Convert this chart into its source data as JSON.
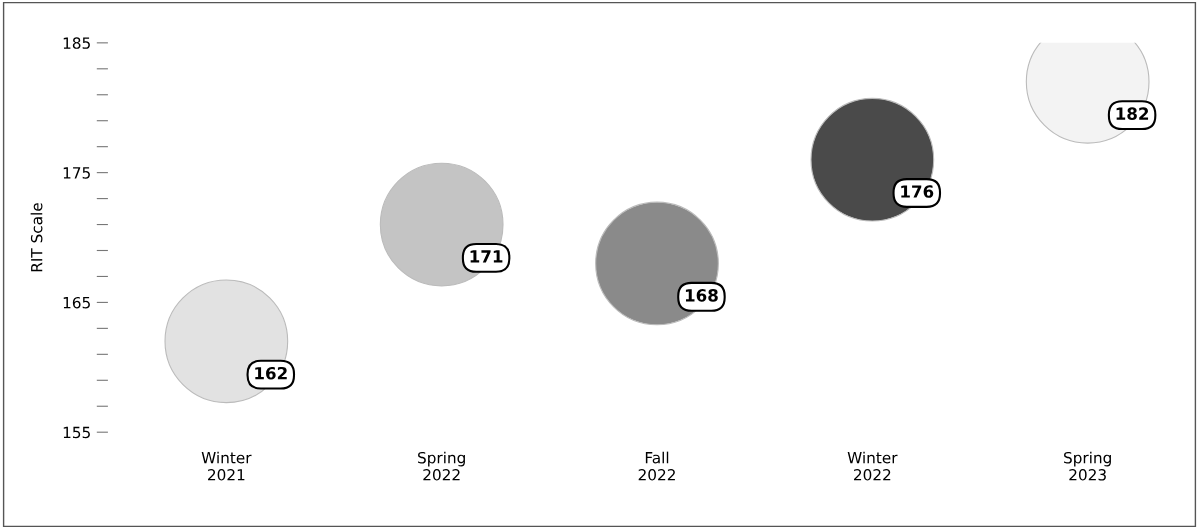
{
  "chart_data": {
    "type": "scatter",
    "ylabel": "RIT Scale",
    "marker": "circle",
    "categories": [
      "Winter\n2021",
      "Spring\n2022",
      "Fall\n2022",
      "Winter\n2022",
      "Spring\n2023"
    ],
    "series": [
      {
        "colors": [
          "#e2e2e2",
          "#c4c4c4",
          "#8a8a8a",
          "#4a4a4a",
          "#f3f3f3"
        ],
        "values": [
          162,
          171,
          168,
          176,
          182
        ]
      }
    ],
    "data_labels": true,
    "ylim": [
      155,
      185
    ],
    "yticks": [
      155,
      {
        "value": 157,
        "label": null
      },
      {
        "value": 159,
        "label": null
      },
      {
        "value": 161,
        "label": null
      },
      {
        "value": 163,
        "label": null
      },
      165,
      {
        "value": 167,
        "label": null
      },
      {
        "value": 169,
        "label": null
      },
      {
        "value": 171,
        "label": null
      },
      {
        "value": 173,
        "label": null
      },
      175,
      {
        "value": 177,
        "label": null
      },
      {
        "value": 179,
        "label": null
      },
      {
        "value": 181,
        "label": null
      },
      {
        "value": 183,
        "label": null
      },
      185
    ],
    "grid": false,
    "legend": false
  }
}
